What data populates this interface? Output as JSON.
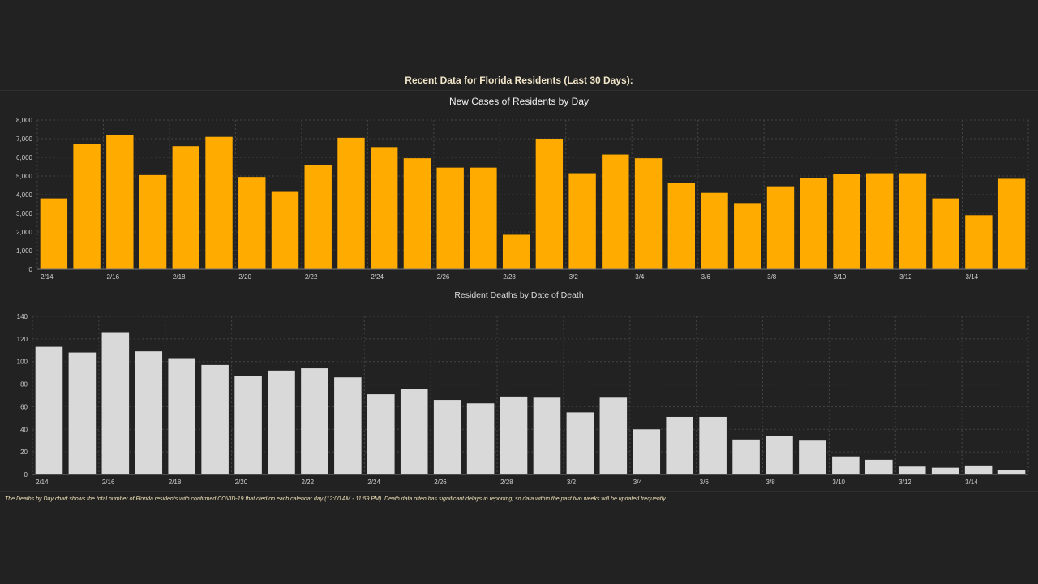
{
  "header": {
    "title": "Recent Data for Florida Residents (Last 30 Days):"
  },
  "colors": {
    "cases_bar": "#ffab00",
    "deaths_bar": "#d9d9d9",
    "background": "#222222",
    "grid": "#444444"
  },
  "footnote": "The Deaths by Day chart shows the total number of Florida residents with confirmed COVID-19 that died on each calendar day (12:00 AM - 11:59 PM). Death data often has significant delays in reporting, so data within the past two weeks will be updated frequently.",
  "chart_data": [
    {
      "type": "bar",
      "title": "New Cases of Residents by Day",
      "xlabel": "",
      "ylabel": "",
      "ylim": [
        0,
        8000
      ],
      "yticks": [
        "0",
        "1,000",
        "2,000",
        "3,000",
        "4,000",
        "5,000",
        "6,000",
        "7,000",
        "8,000"
      ],
      "grid": true,
      "categories": [
        "2/14",
        "2/15",
        "2/16",
        "2/17",
        "2/18",
        "2/19",
        "2/20",
        "2/21",
        "2/22",
        "2/23",
        "2/24",
        "2/25",
        "2/26",
        "2/27",
        "2/28",
        "3/1",
        "3/2",
        "3/3",
        "3/4",
        "3/5",
        "3/6",
        "3/7",
        "3/8",
        "3/9",
        "3/10",
        "3/11",
        "3/12",
        "3/13",
        "3/14",
        "3/15"
      ],
      "x_tick_labels": [
        "2/14",
        "2/16",
        "2/18",
        "2/20",
        "2/22",
        "2/24",
        "2/26",
        "2/28",
        "3/2",
        "3/4",
        "3/6",
        "3/8",
        "3/10",
        "3/12",
        "3/14"
      ],
      "values": [
        3800,
        6700,
        7200,
        5050,
        6600,
        7100,
        4950,
        4150,
        5600,
        7050,
        6550,
        5950,
        5450,
        5450,
        1850,
        7000,
        5150,
        6150,
        5950,
        4650,
        4100,
        3550,
        4450,
        4900,
        5100,
        5150,
        5150,
        3800,
        2900,
        4850
      ]
    },
    {
      "type": "bar",
      "title": "Resident Deaths by Date of Death",
      "xlabel": "",
      "ylabel": "",
      "ylim": [
        0,
        140
      ],
      "yticks": [
        "0",
        "20",
        "40",
        "60",
        "80",
        "100",
        "120",
        "140"
      ],
      "grid": true,
      "categories": [
        "2/14",
        "2/15",
        "2/16",
        "2/17",
        "2/18",
        "2/19",
        "2/20",
        "2/21",
        "2/22",
        "2/23",
        "2/24",
        "2/25",
        "2/26",
        "2/27",
        "2/28",
        "3/1",
        "3/2",
        "3/3",
        "3/4",
        "3/5",
        "3/6",
        "3/7",
        "3/8",
        "3/9",
        "3/10",
        "3/11",
        "3/12",
        "3/13",
        "3/14",
        "3/15"
      ],
      "x_tick_labels": [
        "2/14",
        "2/16",
        "2/18",
        "2/20",
        "2/22",
        "2/24",
        "2/26",
        "2/28",
        "3/2",
        "3/4",
        "3/6",
        "3/8",
        "3/10",
        "3/12",
        "3/14"
      ],
      "values": [
        113,
        108,
        126,
        109,
        103,
        97,
        87,
        92,
        94,
        86,
        71,
        76,
        66,
        63,
        69,
        68,
        55,
        68,
        40,
        51,
        51,
        31,
        34,
        30,
        16,
        13,
        7,
        6,
        8,
        4
      ]
    }
  ]
}
